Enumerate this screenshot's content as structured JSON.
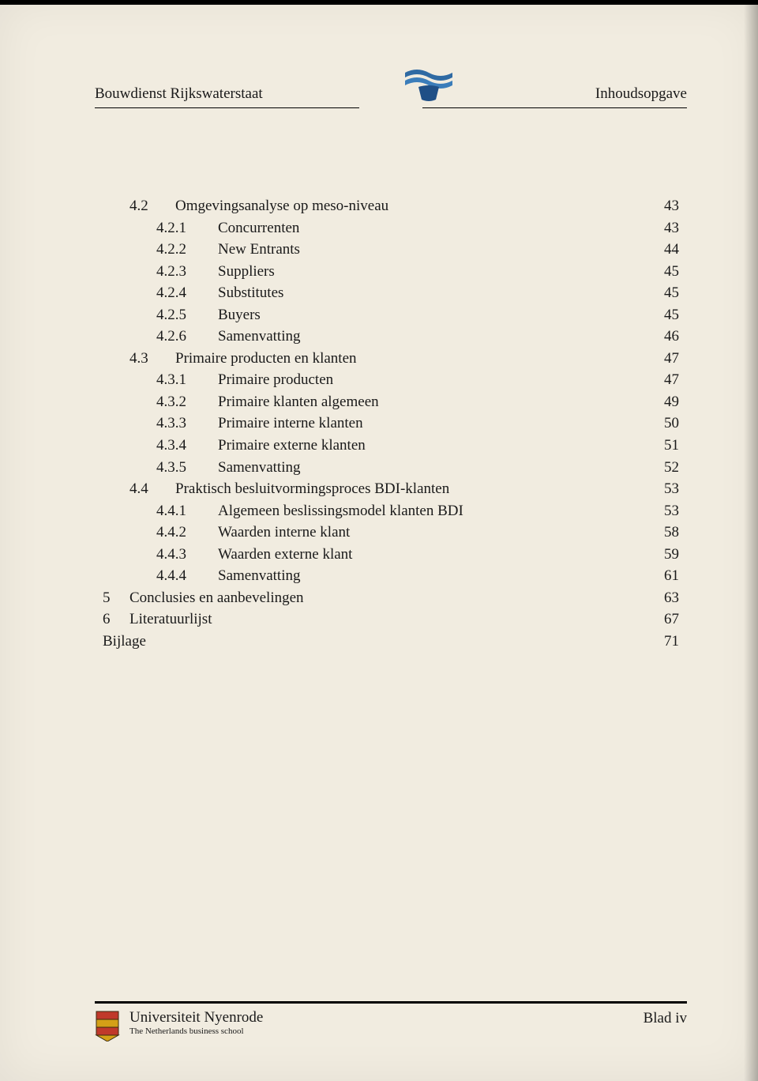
{
  "header": {
    "left": "Bouwdienst Rijkswaterstaat",
    "right": "Inhoudsopgave",
    "logo_colors": {
      "top": "#2f6aa3",
      "mid": "#3b7dba",
      "bottom": "#1f4f86"
    }
  },
  "toc": [
    {
      "level": 2,
      "num": "4.2",
      "title": "Omgevingsanalyse op meso-niveau",
      "page": "43"
    },
    {
      "level": 3,
      "num": "4.2.1",
      "title": "Concurrenten",
      "page": "43"
    },
    {
      "level": 3,
      "num": "4.2.2",
      "title": "New Entrants",
      "page": "44"
    },
    {
      "level": 3,
      "num": "4.2.3",
      "title": "Suppliers",
      "page": "45"
    },
    {
      "level": 3,
      "num": "4.2.4",
      "title": "Substitutes",
      "page": "45"
    },
    {
      "level": 3,
      "num": "4.2.5",
      "title": "Buyers",
      "page": "45"
    },
    {
      "level": 3,
      "num": "4.2.6",
      "title": "Samenvatting",
      "page": "46"
    },
    {
      "level": 2,
      "num": "4.3",
      "title": "Primaire producten en klanten",
      "page": "47"
    },
    {
      "level": 3,
      "num": "4.3.1",
      "title": "Primaire producten",
      "page": "47"
    },
    {
      "level": 3,
      "num": "4.3.2",
      "title": "Primaire klanten algemeen",
      "page": "49"
    },
    {
      "level": 3,
      "num": "4.3.3",
      "title": "Primaire interne klanten",
      "page": "50"
    },
    {
      "level": 3,
      "num": "4.3.4",
      "title": "Primaire externe klanten",
      "page": "51"
    },
    {
      "level": 3,
      "num": "4.3.5",
      "title": "Samenvatting",
      "page": "52"
    },
    {
      "level": 2,
      "num": "4.4",
      "title": "Praktisch besluitvormingsproces BDI-klanten",
      "page": "53"
    },
    {
      "level": 3,
      "num": "4.4.1",
      "title": "Algemeen beslissingsmodel klanten BDI",
      "page": "53"
    },
    {
      "level": 3,
      "num": "4.4.2",
      "title": "Waarden interne klant",
      "page": "58"
    },
    {
      "level": 3,
      "num": "4.4.3",
      "title": "Waarden externe klant",
      "page": "59"
    },
    {
      "level": 3,
      "num": "4.4.4",
      "title": "Samenvatting",
      "page": "61"
    },
    {
      "level": 1,
      "num": "5",
      "title": "Conclusies en aanbevelingen",
      "page": "63"
    },
    {
      "level": 1,
      "num": "6",
      "title": "Literatuurlijst",
      "page": "67"
    },
    {
      "level": 0,
      "num": "",
      "title": "Bijlage",
      "page": "71"
    }
  ],
  "footer": {
    "university": "Universiteit Nyenrode",
    "subtitle": "The Netherlands business school",
    "page_label_prefix": "Blad ",
    "page_label_num": "iv",
    "crest_colors": {
      "red": "#c0392b",
      "gold": "#d4a017",
      "border": "#3a2a12"
    }
  },
  "colors": {
    "paper": "#f1ece0",
    "text": "#1a1a1a",
    "rule": "#000000"
  },
  "typography": {
    "family": "Times New Roman",
    "body_size_pt": 14,
    "footer_sub_size_pt": 8
  }
}
